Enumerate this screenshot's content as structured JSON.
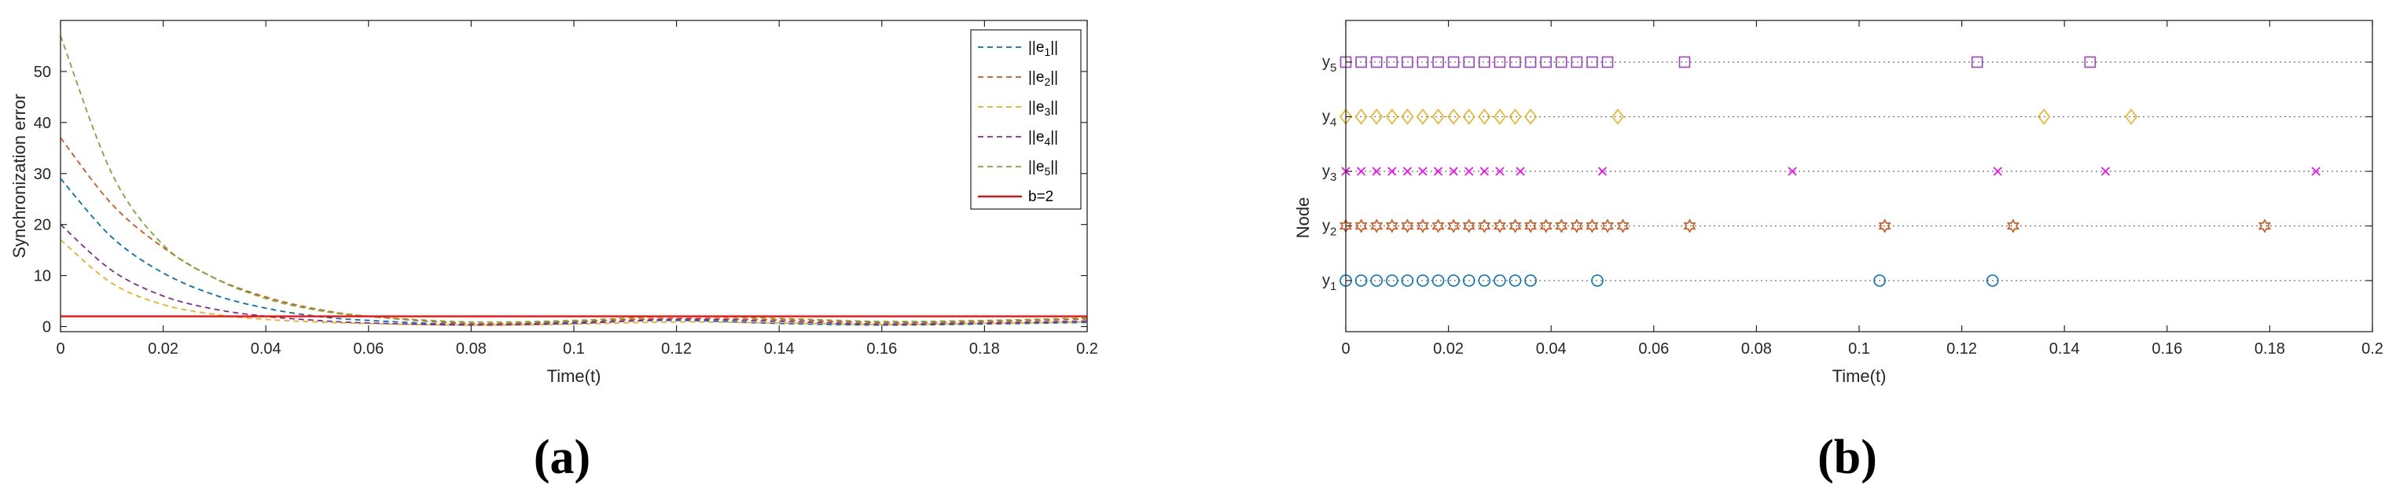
{
  "chart_data": [
    {
      "type": "line",
      "panel_label": "(a)",
      "xlabel": "Time(t)",
      "ylabel": "Synchronization error",
      "xlim": [
        0,
        0.2
      ],
      "ylim": [
        -1,
        60
      ],
      "xticks": [
        0,
        0.02,
        0.04,
        0.06,
        0.08,
        0.1,
        0.12,
        0.14,
        0.16,
        0.18,
        0.2
      ],
      "xtick_labels": [
        "0",
        "0.02",
        "0.04",
        "0.06",
        "0.08",
        "0.1",
        "0.12",
        "0.14",
        "0.16",
        "0.18",
        "0.2"
      ],
      "yticks": [
        0,
        10,
        20,
        30,
        40,
        50
      ],
      "ytick_labels": [
        "0",
        "10",
        "20",
        "30",
        "40",
        "50"
      ],
      "legend_position": "top-right",
      "x": [
        0,
        0.01,
        0.02,
        0.03,
        0.04,
        0.05,
        0.06,
        0.08,
        0.1,
        0.12,
        0.14,
        0.16,
        0.18,
        0.2
      ],
      "series": [
        {
          "name": "||e",
          "sub": "1",
          "name_tail": "||",
          "color": "#0072BD",
          "style": "dashed",
          "values": [
            29,
            17.5,
            10.5,
            6.2,
            3.6,
            2.0,
            1.2,
            0.4,
            0.8,
            1.2,
            0.6,
            0.3,
            0.5,
            0.8
          ]
        },
        {
          "name": "||e",
          "sub": "2",
          "name_tail": "||",
          "color": "#D95319",
          "style": "dashed",
          "values": [
            37,
            24,
            15.5,
            9.5,
            5.8,
            3.4,
            2.0,
            0.6,
            1.0,
            1.6,
            1.3,
            0.8,
            1.0,
            1.5
          ]
        },
        {
          "name": "||e",
          "sub": "3",
          "name_tail": "||",
          "color": "#EDB120",
          "style": "dashed",
          "values": [
            17,
            8.5,
            4.3,
            2.4,
            1.4,
            0.9,
            0.6,
            0.3,
            0.5,
            0.9,
            0.7,
            0.4,
            0.6,
            0.9
          ]
        },
        {
          "name": "||e",
          "sub": "4",
          "name_tail": "||",
          "color": "#7E2F8E",
          "style": "dashed",
          "values": [
            20,
            11,
            6,
            3.4,
            2.0,
            1.2,
            0.7,
            0.3,
            0.6,
            1.4,
            1.0,
            0.5,
            0.7,
            1.1
          ]
        },
        {
          "name": "||e",
          "sub": "5",
          "name_tail": "||",
          "color": "#77AC30",
          "style": "dashed",
          "values": [
            57,
            30,
            16,
            9.5,
            5.5,
            3.2,
            2.0,
            0.9,
            1.2,
            2.0,
            1.6,
            1.0,
            1.2,
            1.7
          ]
        },
        {
          "name": "b=2",
          "sub": "",
          "name_tail": "",
          "color": "#FF0000",
          "style": "solid",
          "values": [
            2,
            2,
            2,
            2,
            2,
            2,
            2,
            2,
            2,
            2,
            2,
            2,
            2,
            2
          ]
        }
      ]
    },
    {
      "type": "scatter",
      "panel_label": "(b)",
      "xlabel": "Time(t)",
      "ylabel": "Node",
      "xlim": [
        0,
        0.2
      ],
      "xticks": [
        0,
        0.02,
        0.04,
        0.06,
        0.08,
        0.1,
        0.12,
        0.14,
        0.16,
        0.18,
        0.2
      ],
      "xtick_labels": [
        "0",
        "0.02",
        "0.04",
        "0.06",
        "0.08",
        "0.1",
        "0.12",
        "0.14",
        "0.16",
        "0.18",
        "0.2"
      ],
      "grid": "dotted horizontal line per node",
      "nodes": [
        {
          "label": "y",
          "sub": "1",
          "marker": "circle",
          "color": "#0072BD",
          "times": [
            0,
            0.003,
            0.006,
            0.009,
            0.012,
            0.015,
            0.018,
            0.021,
            0.024,
            0.027,
            0.03,
            0.033,
            0.036,
            0.049,
            0.104,
            0.126
          ]
        },
        {
          "label": "y",
          "sub": "2",
          "marker": "hexagram",
          "color": "#D95319",
          "times": [
            0,
            0.003,
            0.006,
            0.009,
            0.012,
            0.015,
            0.018,
            0.021,
            0.024,
            0.027,
            0.03,
            0.033,
            0.036,
            0.039,
            0.042,
            0.045,
            0.048,
            0.051,
            0.054,
            0.067,
            0.105,
            0.13,
            0.179
          ]
        },
        {
          "label": "y",
          "sub": "3",
          "marker": "x",
          "color": "#FF00FF",
          "times": [
            0,
            0.003,
            0.006,
            0.009,
            0.012,
            0.015,
            0.018,
            0.021,
            0.024,
            0.027,
            0.03,
            0.034,
            0.05,
            0.087,
            0.127,
            0.148,
            0.189
          ]
        },
        {
          "label": "y",
          "sub": "4",
          "marker": "diamond",
          "color": "#EDB120",
          "times": [
            0,
            0.003,
            0.006,
            0.009,
            0.012,
            0.015,
            0.018,
            0.021,
            0.024,
            0.027,
            0.03,
            0.033,
            0.036,
            0.053,
            0.136,
            0.153
          ]
        },
        {
          "label": "y",
          "sub": "5",
          "marker": "square",
          "color": "#A040C0",
          "times": [
            0,
            0.003,
            0.006,
            0.009,
            0.012,
            0.015,
            0.018,
            0.021,
            0.024,
            0.027,
            0.03,
            0.033,
            0.036,
            0.039,
            0.042,
            0.045,
            0.048,
            0.051,
            0.066,
            0.123,
            0.145
          ]
        }
      ]
    }
  ]
}
